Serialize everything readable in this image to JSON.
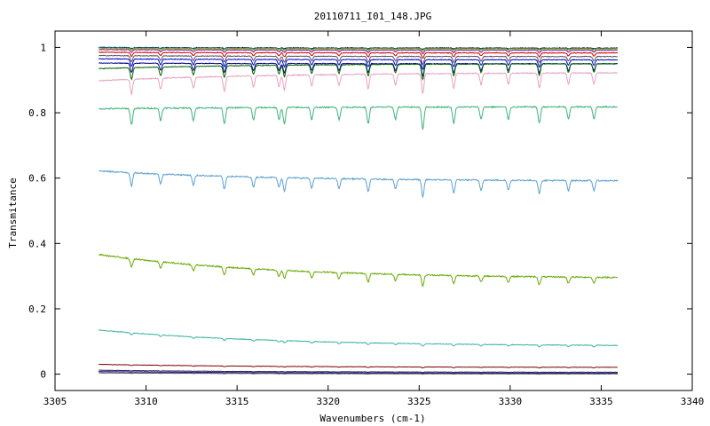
{
  "chart_data": {
    "type": "line",
    "title": "20110711_I01_148.JPG",
    "xlabel": "Wavenumbers (cm-1)",
    "ylabel": "Transmitance",
    "xlim": [
      3305,
      3340
    ],
    "ylim": [
      -0.05,
      1.05
    ],
    "x_ticks": [
      3305,
      3310,
      3315,
      3320,
      3325,
      3330,
      3335,
      3340
    ],
    "y_ticks": [
      0,
      0.2,
      0.4,
      0.6,
      0.8,
      1
    ],
    "x_tick_labels": [
      "3305",
      "3310",
      "3315",
      "3320",
      "3325",
      "3330",
      "3335",
      "3340"
    ],
    "y_tick_labels": [
      "0",
      "0.2",
      "0.4",
      "0.6",
      "0.8",
      "1"
    ],
    "grid": false,
    "legend": "none",
    "x_range_data": [
      3307.4,
      3335.9
    ],
    "absorption_lines": [
      3309.2,
      3310.8,
      3312.6,
      3314.3,
      3315.9,
      3317.3,
      3317.6,
      3319.1,
      3320.6,
      3322.2,
      3323.7,
      3325.2,
      3326.9,
      3328.4,
      3329.9,
      3331.6,
      3333.2,
      3334.6
    ],
    "series": [
      {
        "color": "#000000",
        "start": 1.0,
        "end": 0.998,
        "depth": 0.003,
        "noise": 0.002
      },
      {
        "color": "#1a8f8f",
        "start": 0.999,
        "end": 0.997,
        "depth": 0.004,
        "noise": 0.002
      },
      {
        "color": "#c8a000",
        "start": 0.996,
        "end": 0.994,
        "depth": 0.006,
        "noise": 0.002
      },
      {
        "color": "#7b2fbe",
        "start": 0.993,
        "end": 0.991,
        "depth": 0.008,
        "noise": 0.002
      },
      {
        "color": "#cc0000",
        "start": 0.985,
        "end": 0.983,
        "depth": 0.012,
        "noise": 0.002
      },
      {
        "color": "#555555",
        "start": 0.975,
        "end": 0.972,
        "depth": 0.018,
        "noise": 0.002
      },
      {
        "color": "#0000cc",
        "start": 0.965,
        "end": 0.962,
        "depth": 0.022,
        "noise": 0.002
      },
      {
        "color": "#00008b",
        "start": 0.952,
        "end": 0.95,
        "depth": 0.028,
        "noise": 0.002
      },
      {
        "color": "#006400",
        "start": 0.935,
        "end": 0.95,
        "depth": 0.035,
        "noise": 0.002
      },
      {
        "color": "#e8a0c0",
        "start": 0.898,
        "end": 0.922,
        "depth": 0.045,
        "noise": 0.003
      },
      {
        "color": "#3cb37a",
        "start": 0.812,
        "end": 0.818,
        "depth": 0.05,
        "noise": 0.004
      },
      {
        "color": "#5aa0d0",
        "start": 0.622,
        "end": 0.592,
        "depth": 0.04,
        "noise": 0.004
      },
      {
        "color": "#66aa00",
        "start": 0.366,
        "end": 0.296,
        "depth": 0.025,
        "noise": 0.004
      },
      {
        "color": "#3cb3a0",
        "start": 0.135,
        "end": 0.088,
        "depth": 0.006,
        "noise": 0.002
      },
      {
        "color": "#800000",
        "start": 0.03,
        "end": 0.021,
        "depth": 0.002,
        "noise": 0.001
      },
      {
        "color": "#1b2a5a",
        "start": 0.012,
        "end": 0.006,
        "depth": 0.001,
        "noise": 0.001
      },
      {
        "color": "#4b0082",
        "start": 0.008,
        "end": 0.003,
        "depth": 0.001,
        "noise": 0.001
      },
      {
        "color": "#2f4f4f",
        "start": 0.004,
        "end": 0.001,
        "depth": 0.001,
        "noise": 0.001
      }
    ]
  }
}
